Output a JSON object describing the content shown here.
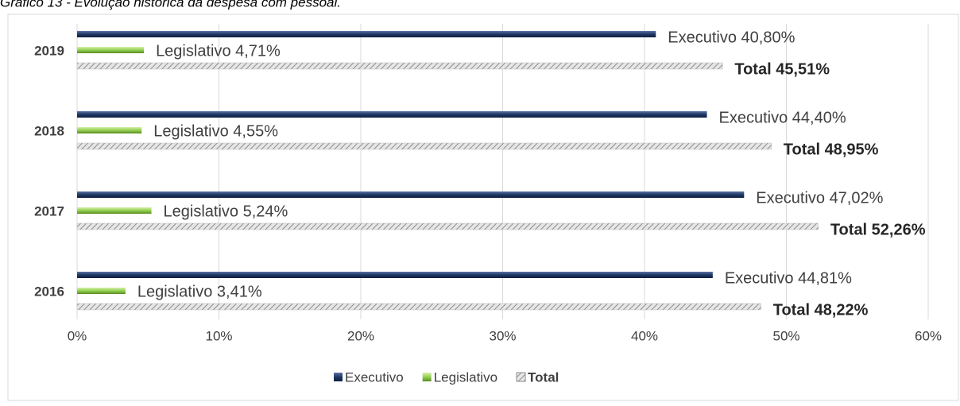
{
  "chart_data": {
    "type": "bar",
    "orientation": "horizontal",
    "title": "Gráfico 13 - Evolução histórica da despesa com pessoal.",
    "categories": [
      "2019",
      "2018",
      "2017",
      "2016"
    ],
    "series": [
      {
        "name": "Executivo",
        "color": "#1f3864",
        "values": [
          40.8,
          44.4,
          47.02,
          44.81
        ],
        "value_labels": [
          "Executivo 40,80%",
          "Executivo 44,40%",
          "Executivo 47,02%",
          "Executivo 44,81%"
        ]
      },
      {
        "name": "Legislativo",
        "color": "#92d050",
        "values": [
          4.71,
          4.55,
          5.24,
          3.41
        ],
        "value_labels": [
          "Legislativo 4,71%",
          "Legislativo 4,55%",
          "Legislativo 5,24%",
          "Legislativo 3,41%"
        ]
      },
      {
        "name": "Total",
        "color": "#a6a6a6",
        "values": [
          45.51,
          48.95,
          52.26,
          48.22
        ],
        "value_labels": [
          "Total 45,51%",
          "Total 48,95%",
          "Total 52,26%",
          "Total 48,22%"
        ]
      }
    ],
    "xlim": [
      0,
      60
    ],
    "xticks": [
      {
        "value": 0,
        "label": "0%"
      },
      {
        "value": 10,
        "label": "10%"
      },
      {
        "value": 20,
        "label": "20%"
      },
      {
        "value": 30,
        "label": "30%"
      },
      {
        "value": 40,
        "label": "40%"
      },
      {
        "value": 50,
        "label": "50%"
      },
      {
        "value": 60,
        "label": "60%"
      }
    ],
    "grid": true,
    "legend": "bottom"
  }
}
